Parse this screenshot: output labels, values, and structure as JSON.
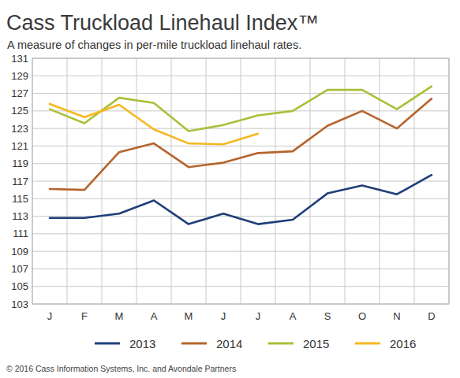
{
  "chart_data": {
    "type": "line",
    "title": "Cass Truckload Linehaul Index™",
    "subtitle": "A measure of changes in per-mile truckload linehaul rates.",
    "source": "© 2016 Cass Information Systems, Inc. and Avondale Partners",
    "categories": [
      "J",
      "F",
      "M",
      "A",
      "M",
      "J",
      "J",
      "A",
      "S",
      "O",
      "N",
      "D"
    ],
    "series": [
      {
        "name": "2013",
        "color": "#1f3f7a",
        "values": [
          112.8,
          112.8,
          113.3,
          114.8,
          112.1,
          113.3,
          112.1,
          112.6,
          115.6,
          116.5,
          115.5,
          117.7
        ]
      },
      {
        "name": "2014",
        "color": "#b5642c",
        "values": [
          116.1,
          116.0,
          120.3,
          121.3,
          118.6,
          119.1,
          120.2,
          120.4,
          123.3,
          125.0,
          123.0,
          126.4
        ]
      },
      {
        "name": "2015",
        "color": "#a8c03a",
        "values": [
          125.2,
          123.6,
          126.5,
          125.9,
          122.7,
          123.4,
          124.5,
          125.0,
          127.4,
          127.4,
          125.2,
          127.8
        ]
      },
      {
        "name": "2016",
        "color": "#f5b820",
        "values": [
          125.8,
          124.3,
          125.7,
          122.9,
          121.3,
          121.2,
          122.4,
          null,
          null,
          null,
          null,
          null
        ]
      }
    ],
    "ylim": [
      103,
      131
    ],
    "yticks": [
      103,
      105,
      107,
      109,
      111,
      113,
      115,
      117,
      119,
      121,
      123,
      125,
      127,
      129,
      131
    ],
    "grid": true,
    "legend": "bottom"
  }
}
